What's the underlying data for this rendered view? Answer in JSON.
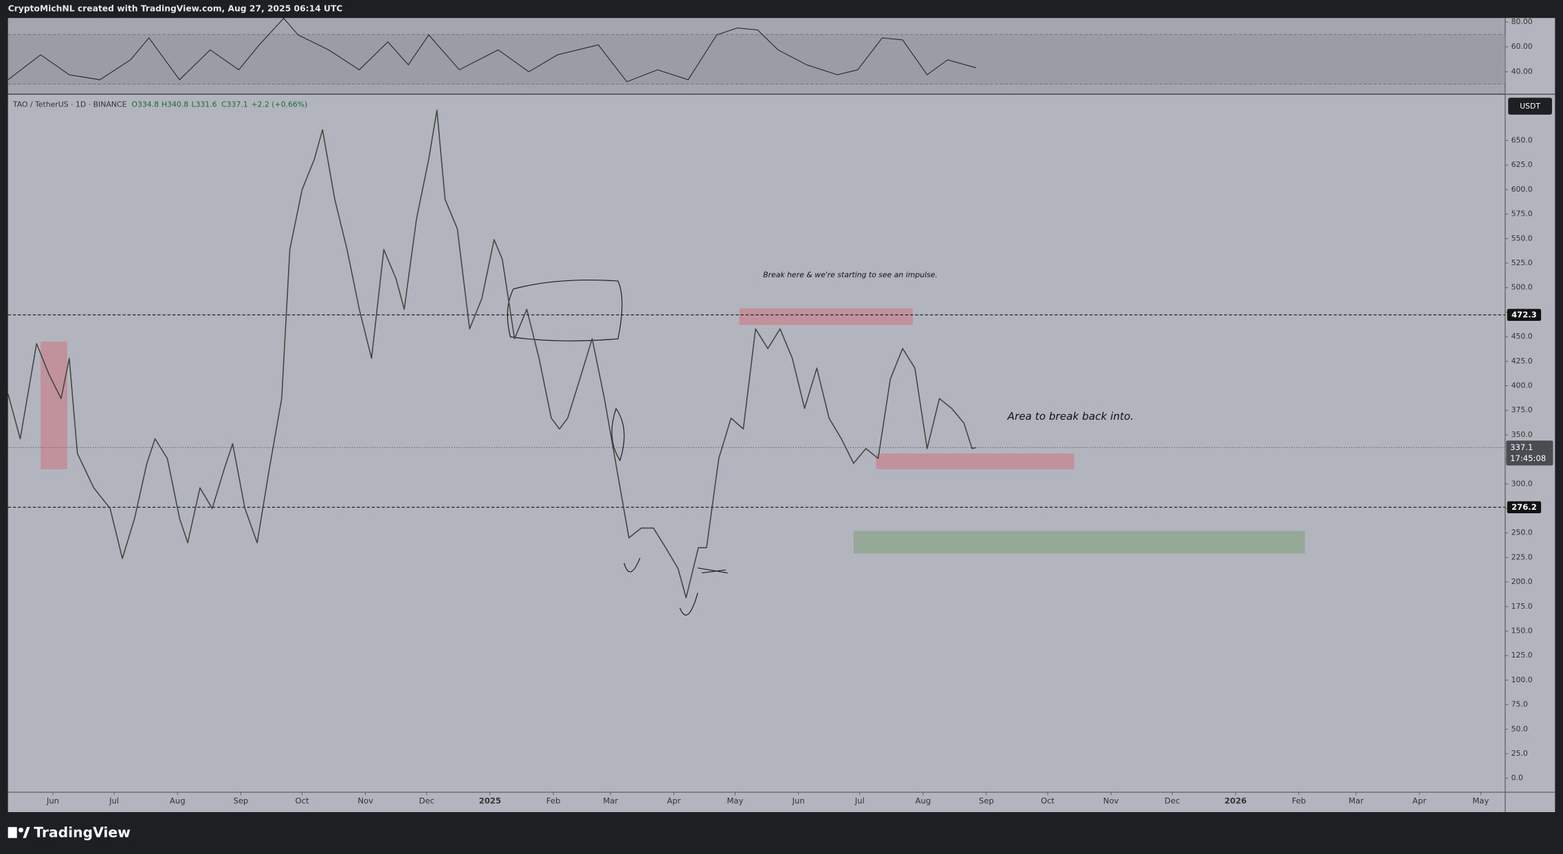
{
  "chart_data": {
    "type": "line",
    "header": "CryptoMichNL created with TradingView.com, Aug 27, 2025 06:14 UTC",
    "symbol": "TAO / TetherUS · 1D · BINANCE",
    "ohlc": [
      "O334.8",
      "H340.8",
      "L331.6",
      "C337.1",
      "+2.2 (+0.66%)"
    ],
    "currency": "USDT",
    "brand": "TradingView",
    "annotations": [
      "Break here & we're starting to see an impulse.",
      "Area to break back into."
    ],
    "x": [
      -22,
      -16,
      -8,
      -2,
      4,
      8,
      12,
      20,
      28,
      34,
      40,
      46,
      50,
      56,
      62,
      66,
      72,
      78,
      84,
      88,
      94,
      100,
      106,
      112,
      116,
      122,
      128,
      132,
      138,
      144,
      150,
      156,
      162,
      168,
      172,
      178,
      184,
      188,
      192,
      198,
      204,
      210,
      216,
      220,
      226,
      232,
      238,
      244,
      248,
      252,
      258,
      264,
      270,
      276,
      282,
      288,
      294,
      300,
      306,
      310,
      316,
      320,
      326,
      332,
      338,
      344,
      350,
      356,
      362,
      368,
      374,
      380,
      386,
      392,
      398,
      404,
      410,
      416,
      422,
      428,
      434,
      440,
      446,
      450,
      452
    ],
    "series": [
      {
        "name": "TAO / TetherUS",
        "color": "#3f4a3f",
        "values": [
          392,
          346,
          443,
          412,
          387,
          428,
          331,
          296,
          275,
          224,
          265,
          321,
          346,
          326,
          265,
          240,
          296,
          275,
          316,
          341,
          275,
          240,
          316,
          387,
          539,
          600,
          631,
          661,
          590,
          539,
          478,
          428,
          539,
          509,
          478,
          570,
          631,
          681,
          590,
          560,
          458,
          489,
          549,
          529,
          448,
          478,
          428,
          367,
          356,
          367,
          407,
          448,
          387,
          316,
          245,
          255,
          255,
          235,
          214,
          184,
          235,
          235,
          326,
          367,
          356,
          458,
          438,
          458,
          428,
          377,
          418,
          367,
          346,
          321,
          336,
          326,
          407,
          438,
          418,
          336,
          387,
          377,
          362,
          336,
          337.1
        ]
      }
    ],
    "xlim": [
      -22,
      711
    ],
    "xticks": [
      {
        "value": 0,
        "label": "Jun"
      },
      {
        "value": 30,
        "label": "Jul"
      },
      {
        "value": 61,
        "label": "Aug"
      },
      {
        "value": 92,
        "label": "Sep"
      },
      {
        "value": 122,
        "label": "Oct"
      },
      {
        "value": 153,
        "label": "Nov"
      },
      {
        "value": 183,
        "label": "Dec"
      },
      {
        "value": 214,
        "label": "2025"
      },
      {
        "value": 245,
        "label": "Feb"
      },
      {
        "value": 273,
        "label": "Mar"
      },
      {
        "value": 304,
        "label": "Apr"
      },
      {
        "value": 334,
        "label": "May"
      },
      {
        "value": 365,
        "label": "Jun"
      },
      {
        "value": 395,
        "label": "Jul"
      },
      {
        "value": 426,
        "label": "Aug"
      },
      {
        "value": 457,
        "label": "Sep"
      },
      {
        "value": 487,
        "label": "Oct"
      },
      {
        "value": 518,
        "label": "Nov"
      },
      {
        "value": 548,
        "label": "Dec"
      },
      {
        "value": 579,
        "label": "2026"
      },
      {
        "value": 610,
        "label": "Feb"
      },
      {
        "value": 638,
        "label": "Mar"
      },
      {
        "value": 669,
        "label": "Apr"
      },
      {
        "value": 699,
        "label": "May"
      }
    ],
    "ylim": [
      -14.2,
      696.7
    ],
    "yticks": [
      {
        "value": 0,
        "label": "0.0"
      },
      {
        "value": 25,
        "label": "25.0"
      },
      {
        "value": 50,
        "label": "50.0"
      },
      {
        "value": 75,
        "label": "75.0"
      },
      {
        "value": 100,
        "label": "100.0"
      },
      {
        "value": 125,
        "label": "125.0"
      },
      {
        "value": 150,
        "label": "150.0"
      },
      {
        "value": 175,
        "label": "175.0"
      },
      {
        "value": 200,
        "label": "200.0"
      },
      {
        "value": 225,
        "label": "225.0"
      },
      {
        "value": 250,
        "label": "250.0"
      },
      {
        "value": 275,
        "label": "275.0"
      },
      {
        "value": 300,
        "label": "300.0"
      },
      {
        "value": 325,
        "label": "325.0"
      },
      {
        "value": 350,
        "label": "350.0"
      },
      {
        "value": 375,
        "label": "375.0"
      },
      {
        "value": 400,
        "label": "400.0"
      },
      {
        "value": 425,
        "label": "425.0"
      },
      {
        "value": 450,
        "label": "450.0"
      },
      {
        "value": 475,
        "label": "475.0"
      },
      {
        "value": 500,
        "label": "500.0"
      },
      {
        "value": 525,
        "label": "525.0"
      },
      {
        "value": 550,
        "label": "550.0"
      },
      {
        "value": 575,
        "label": "575.0"
      },
      {
        "value": 600,
        "label": "600.0"
      },
      {
        "value": 625,
        "label": "625.0"
      },
      {
        "value": 650,
        "label": "650.0"
      }
    ],
    "price_lines": [
      472.3,
      276.2
    ],
    "last_price": 337.1,
    "countdown": "17:45:08",
    "zones": [
      {
        "x": [
          -6,
          7
        ],
        "y": [
          315,
          445
        ],
        "color": "#c48a94"
      },
      {
        "x": [
          336,
          421
        ],
        "y": [
          462,
          479
        ],
        "color": "#c48a94"
      },
      {
        "x": [
          403,
          500
        ],
        "y": [
          315,
          331
        ],
        "color": "#c48a94"
      },
      {
        "x": [
          392,
          613
        ],
        "y": [
          229,
          252
        ],
        "color": "#8fa58f"
      }
    ],
    "rsi": {
      "x": [
        -22,
        -6,
        8,
        23,
        38,
        47,
        62,
        77,
        91,
        101,
        113,
        120,
        135,
        150,
        164,
        174,
        184,
        199,
        218,
        233,
        247,
        267,
        281,
        296,
        311,
        325,
        335,
        345,
        355,
        369,
        384,
        394,
        406,
        416,
        428,
        438,
        452
      ],
      "values": [
        33.6,
        53.6,
        37.6,
        33.6,
        49.6,
        67.2,
        33.6,
        57.6,
        41.6,
        61.6,
        83,
        69.6,
        57.6,
        41.6,
        64,
        45.6,
        69.6,
        41.6,
        57.6,
        40,
        53.6,
        61.6,
        32,
        41.6,
        33.6,
        69.6,
        75.2,
        73.6,
        57.6,
        45.6,
        37.6,
        41.6,
        67.2,
        65.6,
        37.6,
        49.6,
        43.2
      ],
      "color": "#2b2b2b",
      "ylim": [
        23.2,
        83.2
      ],
      "yticks": [
        {
          "value": 40,
          "label": "40.00"
        },
        {
          "value": 60,
          "label": "60.00"
        },
        {
          "value": 80,
          "label": "80.00"
        }
      ],
      "band": [
        30,
        70
      ]
    }
  }
}
